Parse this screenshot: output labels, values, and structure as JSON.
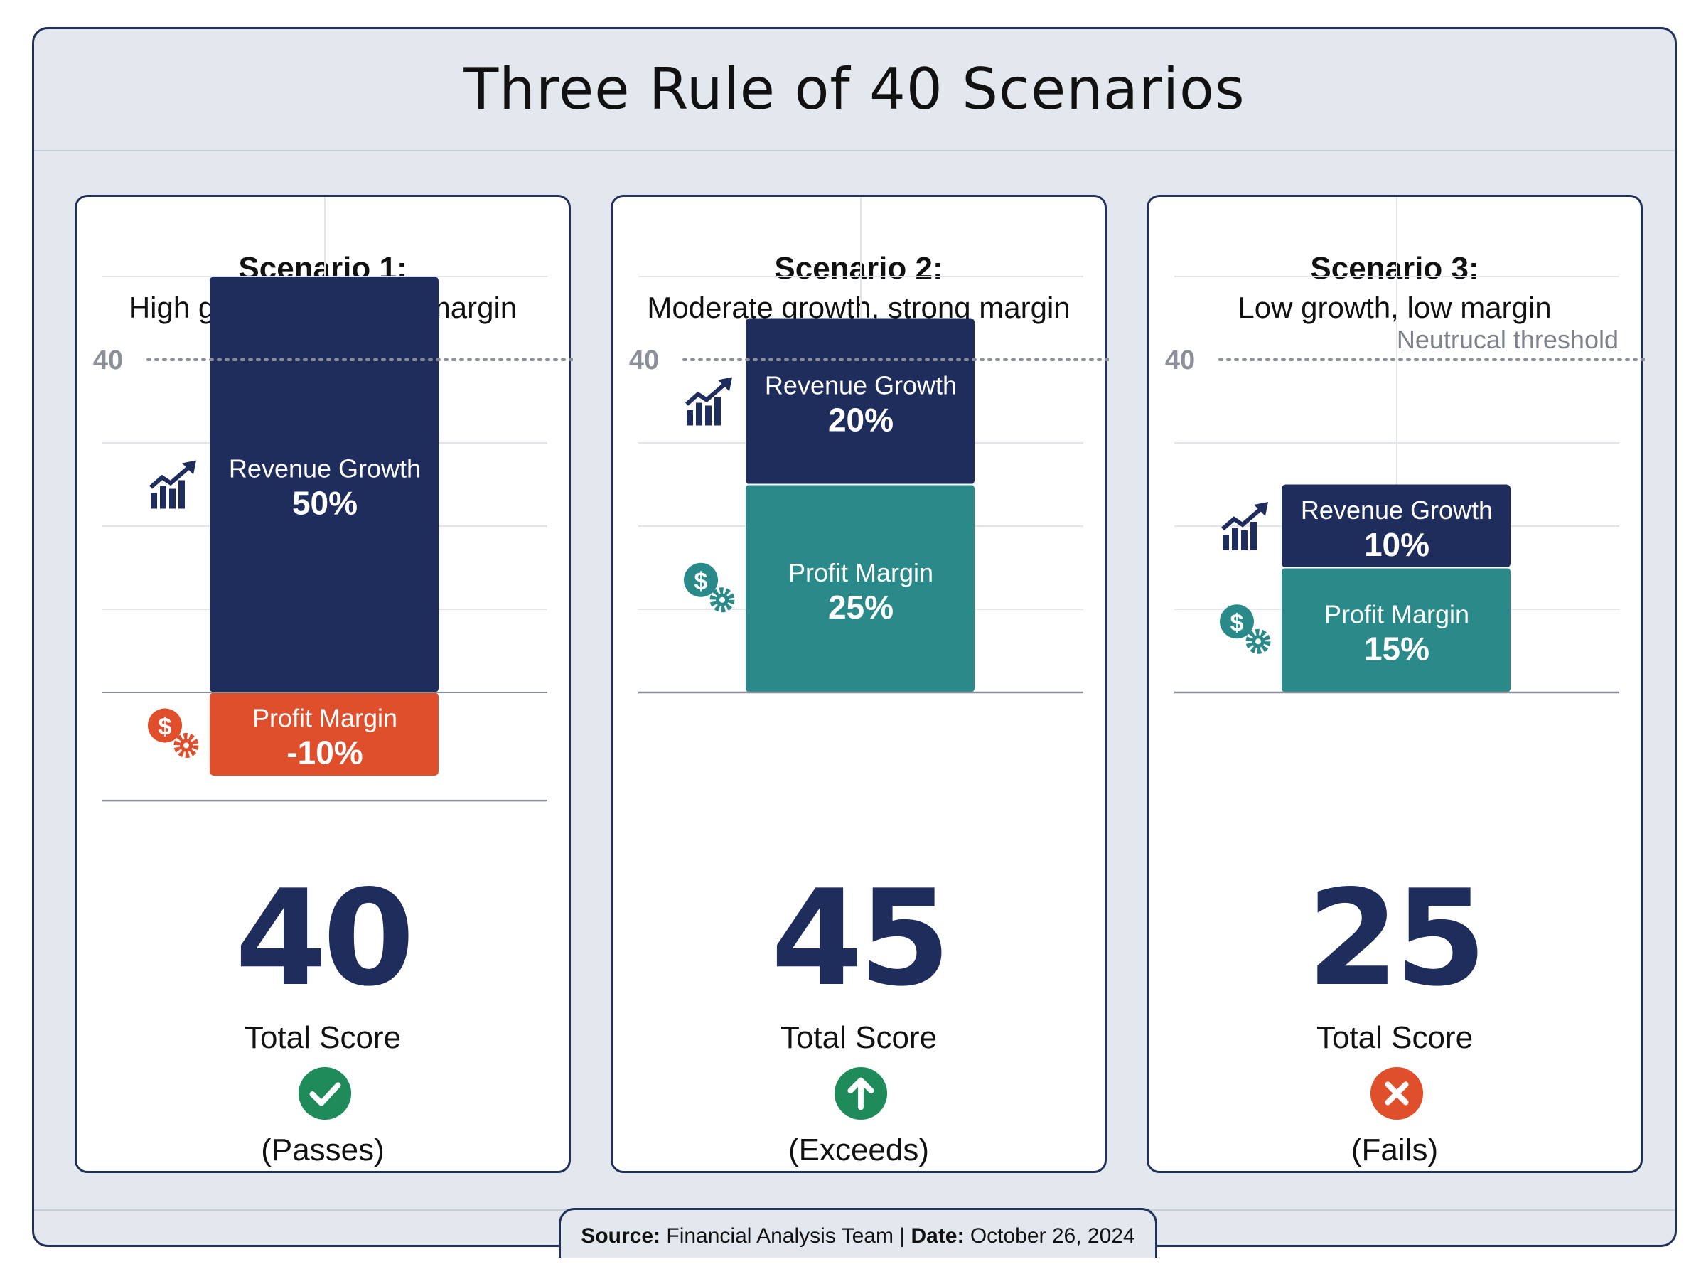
{
  "title": "Three Rule of 40 Scenarios",
  "threshold_label": "Neutrucal threshold",
  "footer": {
    "source_label": "Source:",
    "source_value": "Financial Analysis Team",
    "separator": "|",
    "date_label": "Date:",
    "date_value": "October 26, 2024"
  },
  "colors": {
    "revenue_growth": "#1f2d5c",
    "profit_margin_positive": "#2a8a89",
    "profit_margin_negative": "#e04f2c",
    "pass": "#1f8a5a",
    "fail": "#e04f2c"
  },
  "chart_data": {
    "type": "bar",
    "stacked": true,
    "threshold": 40,
    "threshold_tick_label": "40",
    "scenarios": [
      {
        "title": "Scenario 1:",
        "subtitle": "High growth, negative margin",
        "revenue_growth": {
          "label": "Revenue Growth",
          "value": 50,
          "display": "50%",
          "icon": "growth-chart-icon"
        },
        "profit_margin": {
          "label": "Profit Margin",
          "value": -10,
          "display": "-10%",
          "icon": "dollar-gear-icon"
        },
        "total": 40,
        "total_display": "40",
        "total_label": "Total Score",
        "status": "(Passes)",
        "status_icon": "check-icon"
      },
      {
        "title": "Scenario 2:",
        "subtitle": "Moderate growth, strong margin",
        "revenue_growth": {
          "label": "Revenue Growth",
          "value": 20,
          "display": "20%",
          "icon": "growth-chart-icon"
        },
        "profit_margin": {
          "label": "Profit Margin",
          "value": 25,
          "display": "25%",
          "icon": "dollar-gear-icon"
        },
        "total": 45,
        "total_display": "45",
        "total_label": "Total Score",
        "status": "(Exceeds)",
        "status_icon": "arrow-up-icon"
      },
      {
        "title": "Scenario 3:",
        "subtitle": "Low growth, low margin",
        "revenue_growth": {
          "label": "Revenue Growth",
          "value": 10,
          "display": "10%",
          "icon": "growth-chart-icon"
        },
        "profit_margin": {
          "label": "Profit Margin",
          "value": 15,
          "display": "15%",
          "icon": "dollar-gear-icon"
        },
        "total": 25,
        "total_display": "25",
        "total_label": "Total Score",
        "status": "(Fails)",
        "status_icon": "cross-icon"
      }
    ],
    "grid": true
  }
}
